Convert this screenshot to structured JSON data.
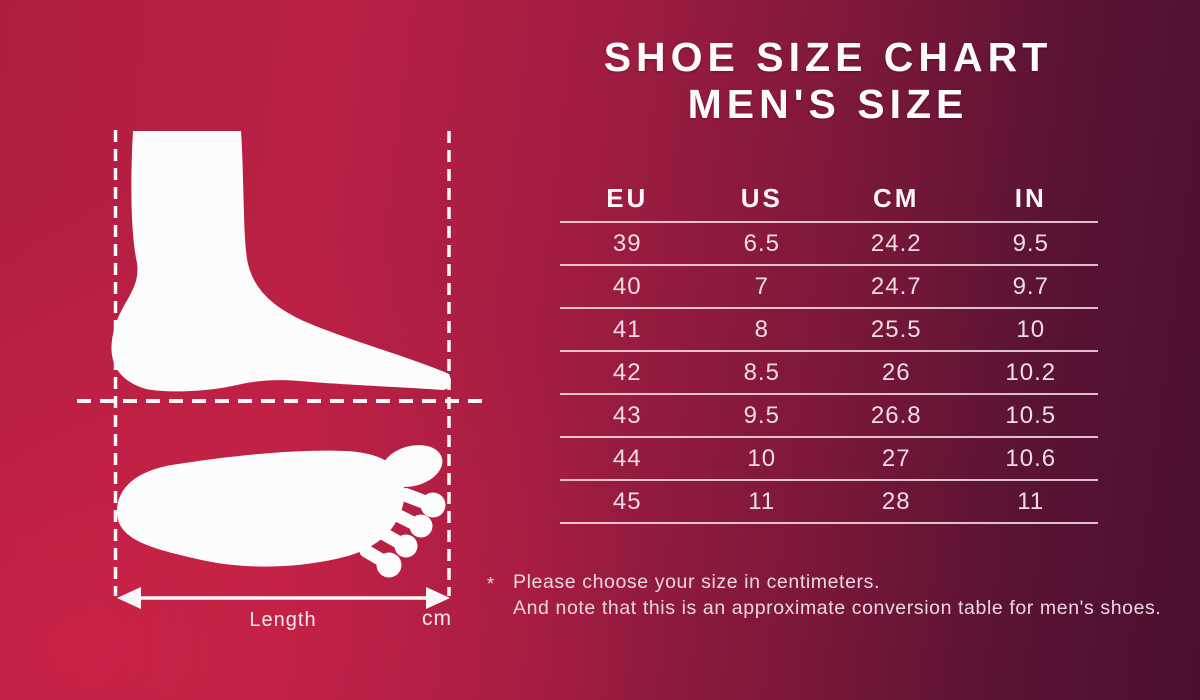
{
  "title": {
    "line1": "SHOE SIZE CHART",
    "line2": "MEN'S SIZE"
  },
  "chart_data": {
    "type": "table",
    "title": "SHOE SIZE CHART MEN'S SIZE",
    "columns": [
      "EU",
      "US",
      "CM",
      "IN"
    ],
    "rows": [
      [
        "39",
        "6.5",
        "24.2",
        "9.5"
      ],
      [
        "40",
        "7",
        "24.7",
        "9.7"
      ],
      [
        "41",
        "8",
        "25.5",
        "10"
      ],
      [
        "42",
        "8.5",
        "26",
        "10.2"
      ],
      [
        "43",
        "9.5",
        "26.8",
        "10.5"
      ],
      [
        "44",
        "10",
        "27",
        "10.6"
      ],
      [
        "45",
        "11",
        "28",
        "11"
      ]
    ]
  },
  "footnote": {
    "marker": "*",
    "line1": "Please choose your size in centimeters.",
    "line2": "And note that this is an approximate conversion table for men's shoes."
  },
  "diagram": {
    "length_label": "Length",
    "unit_label": "cm",
    "foot_side_view": "foot-side-silhouette",
    "foot_top_view": "footprint-silhouette"
  },
  "colors": {
    "background_left": "#bb2044",
    "background_right": "#4b0f31",
    "background_bright_corner": "#c62348",
    "title_text": "#fdfafc",
    "table_text": "#f1dbe5",
    "table_line": "#f5dee8",
    "silhouette": "#fdfcfd"
  }
}
